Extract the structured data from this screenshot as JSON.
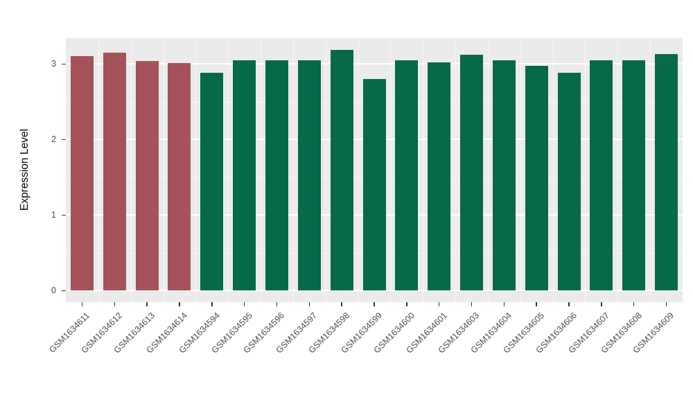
{
  "figure": {
    "background": "#FFFFFF",
    "panel_background": "#EBEBEB",
    "grid_color": "#FFFFFF",
    "tick_color": "#333333",
    "axis_text_color": "#4D4D4D"
  },
  "chart_data": {
    "type": "bar",
    "title": "",
    "xlabel": "",
    "ylabel": "Expression Level",
    "ylim": [
      -0.16,
      3.34
    ],
    "yticks": [
      0,
      1,
      2,
      3
    ],
    "yticks_minor": [
      0.5,
      1.5,
      2.5
    ],
    "grid": true,
    "legend": "none",
    "categories": [
      "GSM1634611",
      "GSM1634612",
      "GSM1634613",
      "GSM1634614",
      "GSM1634594",
      "GSM1634595",
      "GSM1634596",
      "GSM1634597",
      "GSM1634598",
      "GSM1634599",
      "GSM1634600",
      "GSM1634601",
      "GSM1634603",
      "GSM1634604",
      "GSM1634605",
      "GSM1634606",
      "GSM1634607",
      "GSM1634608",
      "GSM1634609"
    ],
    "values": [
      3.1,
      3.15,
      3.04,
      3.01,
      2.88,
      3.05,
      3.05,
      3.05,
      3.18,
      2.8,
      3.05,
      3.02,
      3.12,
      3.05,
      2.97,
      2.88,
      3.05,
      3.05,
      3.13
    ],
    "bar_groups": [
      "group1",
      "group1",
      "group1",
      "group1",
      "group2",
      "group2",
      "group2",
      "group2",
      "group2",
      "group2",
      "group2",
      "group2",
      "group2",
      "group2",
      "group2",
      "group2",
      "group2",
      "group2",
      "group2"
    ],
    "group_colors": {
      "group1": "#A5525A",
      "group2": "#06694A"
    }
  }
}
